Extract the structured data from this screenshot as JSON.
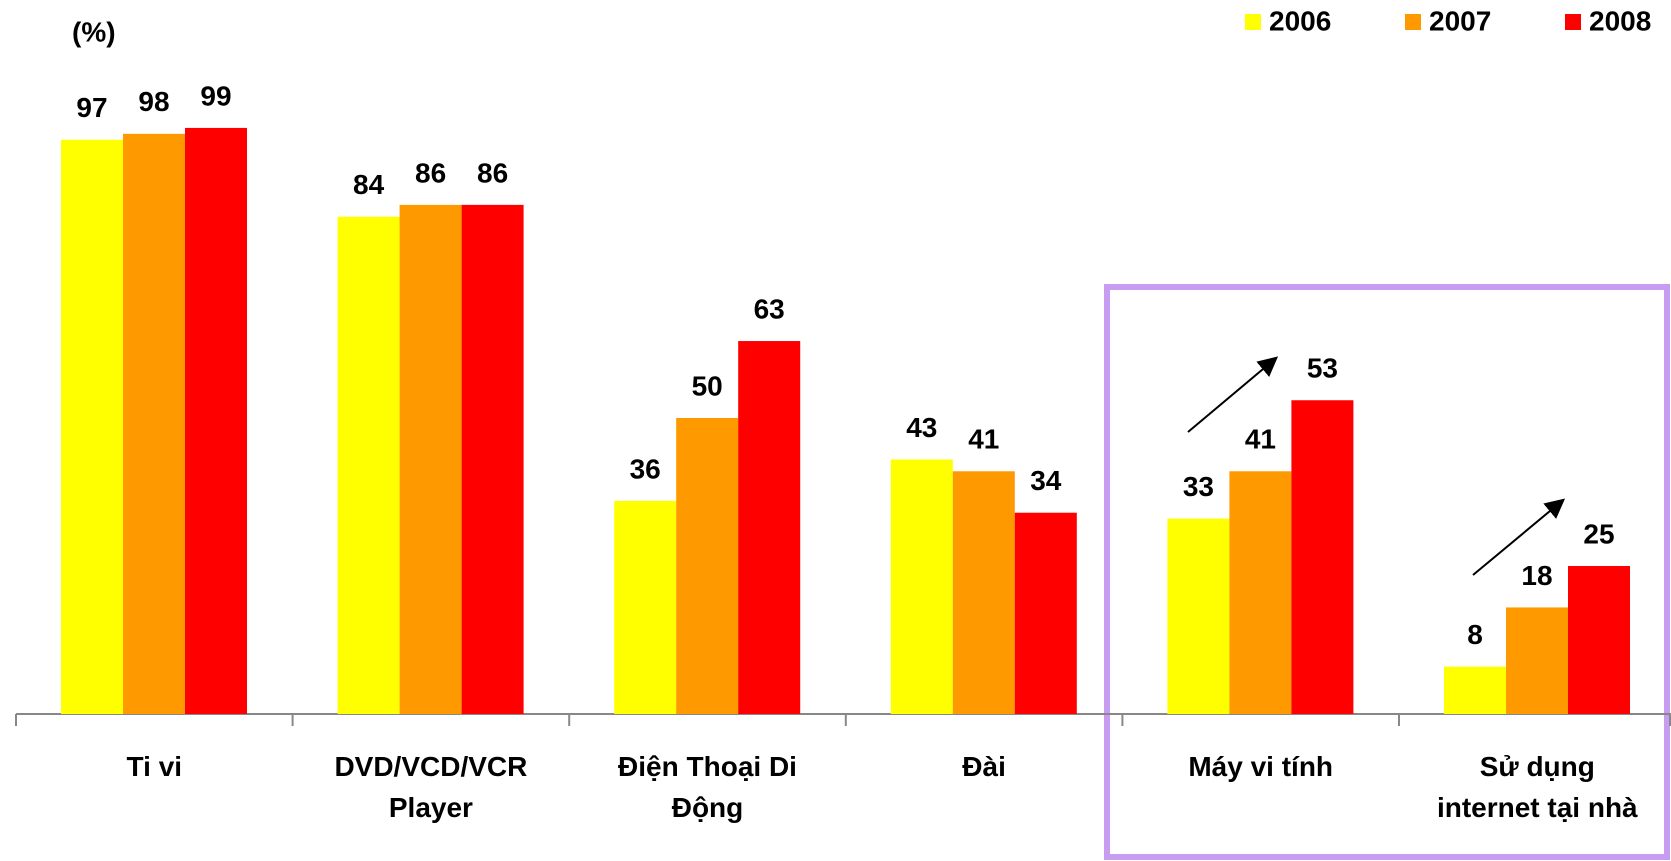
{
  "chart_data": {
    "type": "bar",
    "y_label": "(%)",
    "categories": [
      "Ti vi",
      "DVD/VCD/VCR\nPlayer",
      "Điện Thoại Di\nĐộng",
      "Đài",
      "Máy vi tính",
      "Sử dụng\ninternet tại nhà"
    ],
    "series": [
      {
        "name": "2006",
        "color": "#ffff00",
        "values": [
          97,
          84,
          36,
          43,
          33,
          8
        ]
      },
      {
        "name": "2007",
        "color": "#ff9900",
        "values": [
          98,
          86,
          50,
          41,
          41,
          18
        ]
      },
      {
        "name": "2008",
        "color": "#ff0000",
        "values": [
          99,
          86,
          63,
          34,
          53,
          25
        ]
      }
    ],
    "legend": "top-right"
  }
}
